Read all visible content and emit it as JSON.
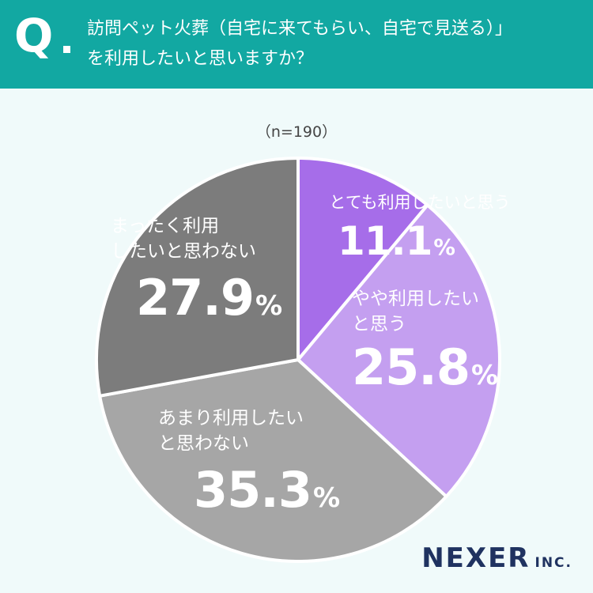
{
  "header": {
    "q_mark": "Q",
    "question_line1": "訪問ペット火葬（自宅に来てもらい、自宅で見送る）」",
    "question_line2": "を利用したいと思いますか？"
  },
  "sample_size": "（n=190）",
  "colors": {
    "header_bg": "#12a8a2",
    "background": "#f0fafa",
    "logo": "#1f3260"
  },
  "chart_data": {
    "type": "pie",
    "start_angle_deg": 0,
    "direction": "clockwise",
    "slices": [
      {
        "label_line1": "とても利用したいと思う",
        "label_line2": "",
        "value": 11.1,
        "display": "11.1",
        "unit": "%",
        "color": "#a66de9"
      },
      {
        "label_line1": "やや利用したい",
        "label_line2": "と思う",
        "value": 25.8,
        "display": "25.8",
        "unit": "%",
        "color": "#c49ff0"
      },
      {
        "label_line1": "あまり利用したい",
        "label_line2": "と思わない",
        "value": 35.3,
        "display": "35.3",
        "unit": "%",
        "color": "#a6a6a6"
      },
      {
        "label_line1": "まったく利用",
        "label_line2": "したいと思わない",
        "value": 27.9,
        "display": "27.9",
        "unit": "%",
        "color": "#7c7c7c"
      }
    ]
  },
  "logo": {
    "main": "NEXER",
    "sub": "INC."
  }
}
